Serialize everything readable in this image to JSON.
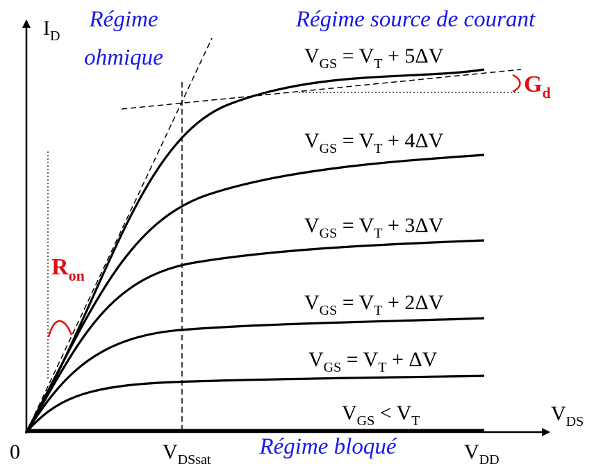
{
  "axes": {
    "y_label": [
      "I",
      "D"
    ],
    "x_label": [
      "V",
      "DS"
    ],
    "origin": "0"
  },
  "regimes": {
    "ohmic": [
      "Régime",
      "ohmique"
    ],
    "saturation": "Régime source de courant",
    "blocked": "Régime bloqué"
  },
  "curves": [
    {
      "label": [
        "V",
        "GS",
        " = V",
        "T",
        " + 5ΔV"
      ]
    },
    {
      "label": [
        "V",
        "GS",
        " = V",
        "T",
        " + 4ΔV"
      ]
    },
    {
      "label": [
        "V",
        "GS",
        " = V",
        "T",
        " + 3ΔV"
      ]
    },
    {
      "label": [
        "V",
        "GS",
        " = V",
        "T",
        " + 2ΔV"
      ]
    },
    {
      "label": [
        "V",
        "GS",
        " = V",
        "T",
        " + ΔV"
      ]
    },
    {
      "label": [
        "V",
        "GS",
        " < V",
        "T"
      ]
    }
  ],
  "annotations": {
    "ron": [
      "R",
      "on"
    ],
    "gd": [
      "G",
      "d"
    ],
    "vdssat": [
      "V",
      "DSsat"
    ],
    "vdd": [
      "V",
      "DD"
    ]
  }
}
